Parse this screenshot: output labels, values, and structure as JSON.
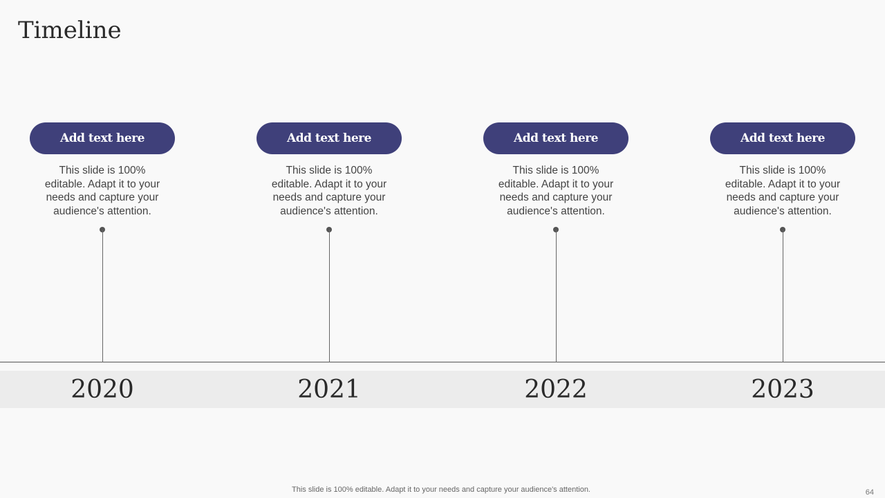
{
  "title": "Timeline",
  "items": [
    {
      "label": "Add text here",
      "desc": "This slide is 100% editable. Adapt it to your needs and capture your audience's attention.",
      "year": "2020"
    },
    {
      "label": "Add text here",
      "desc": "This slide is 100% editable. Adapt it to your needs and capture your audience's attention.",
      "year": "2021"
    },
    {
      "label": "Add text here",
      "desc": "This slide is 100% editable. Adapt it to your needs and capture your audience's attention.",
      "year": "2022"
    },
    {
      "label": "Add text here",
      "desc": "This slide is 100% editable. Adapt it to your needs and capture your audience's attention.",
      "year": "2023"
    }
  ],
  "footer": "This slide is 100% editable. Adapt it to your needs and capture your audience's attention.",
  "page_number": "64",
  "colors": {
    "accent": "#3f407a",
    "band": "#ececec"
  }
}
